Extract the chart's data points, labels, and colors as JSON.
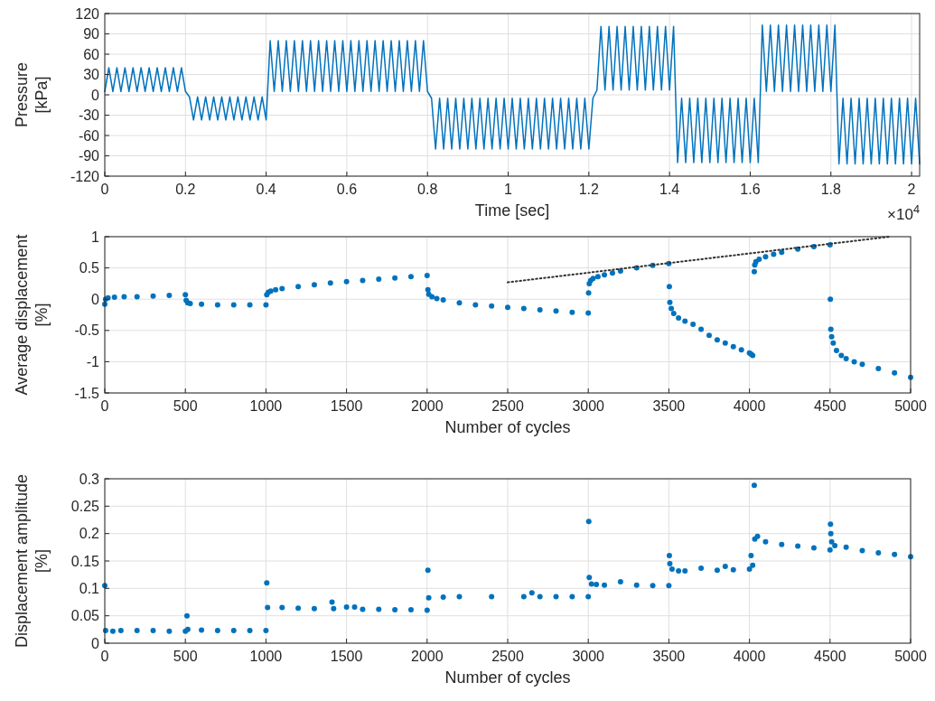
{
  "chart_data": [
    {
      "type": "line",
      "xlabel": "Time [sec]",
      "ylabel": "Pressure\n[kPa]",
      "xlim": [
        0,
        2.02
      ],
      "ylim": [
        -120,
        120
      ],
      "xticks": [
        0,
        0.2,
        0.4,
        0.6,
        0.8,
        1,
        1.2,
        1.4,
        1.6,
        1.8,
        2
      ],
      "yticks": [
        -120,
        -90,
        -60,
        -30,
        0,
        30,
        60,
        90,
        120
      ],
      "grid": true,
      "annotations": [
        "×10$^{4}$"
      ],
      "series": [
        {
          "color": "#0072bd",
          "marker": "none",
          "x": [
            0,
            0.01,
            0.02,
            0.03,
            0.04,
            0.05,
            0.06,
            0.07,
            0.08,
            0.09,
            0.1,
            0.11,
            0.12,
            0.13,
            0.14,
            0.15,
            0.16,
            0.17,
            0.18,
            0.19,
            0.2,
            0.21,
            0.22,
            0.23,
            0.24,
            0.25,
            0.26,
            0.27,
            0.28,
            0.29,
            0.3,
            0.31,
            0.32,
            0.33,
            0.34,
            0.35,
            0.36,
            0.37,
            0.38,
            0.39,
            0.4,
            0.41,
            0.42,
            0.43,
            0.44,
            0.45,
            0.46,
            0.47,
            0.48,
            0.49,
            0.5,
            0.51,
            0.52,
            0.53,
            0.54,
            0.55,
            0.56,
            0.57,
            0.58,
            0.59,
            0.6,
            0.61,
            0.62,
            0.63,
            0.64,
            0.65,
            0.66,
            0.67,
            0.68,
            0.69,
            0.7,
            0.71,
            0.72,
            0.73,
            0.74,
            0.75,
            0.76,
            0.77,
            0.78,
            0.79,
            0.8,
            0.81,
            0.82,
            0.83,
            0.84,
            0.85,
            0.86,
            0.87,
            0.88,
            0.89,
            0.9,
            0.91,
            0.92,
            0.93,
            0.94,
            0.95,
            0.96,
            0.97,
            0.98,
            0.99,
            1,
            1.01,
            1.02,
            1.03,
            1.04,
            1.05,
            1.06,
            1.07,
            1.08,
            1.09,
            1.1,
            1.11,
            1.12,
            1.13,
            1.14,
            1.15,
            1.16,
            1.17,
            1.18,
            1.19,
            1.2,
            1.21,
            1.22,
            1.23,
            1.24,
            1.25,
            1.26,
            1.27,
            1.28,
            1.29,
            1.3,
            1.31,
            1.32,
            1.33,
            1.34,
            1.35,
            1.36,
            1.37,
            1.38,
            1.39,
            1.4,
            1.41,
            1.42,
            1.43,
            1.44,
            1.45,
            1.46,
            1.47,
            1.48,
            1.49,
            1.5,
            1.51,
            1.52,
            1.53,
            1.54,
            1.55,
            1.56,
            1.57,
            1.58,
            1.59,
            1.6,
            1.61,
            1.62,
            1.63,
            1.64,
            1.65,
            1.66,
            1.67,
            1.68,
            1.69,
            1.7,
            1.71,
            1.72,
            1.73,
            1.74,
            1.75,
            1.76,
            1.77,
            1.78,
            1.79,
            1.8,
            1.81,
            1.82,
            1.83,
            1.84,
            1.85,
            1.86,
            1.87,
            1.88,
            1.89,
            1.9,
            1.91,
            1.92,
            1.93,
            1.94,
            1.95,
            1.96,
            1.97,
            1.98,
            1.99,
            2,
            2.01,
            2.02
          ],
          "values": [
            5,
            40,
            5,
            40,
            5,
            40,
            5,
            40,
            5,
            40,
            5,
            40,
            5,
            40,
            5,
            40,
            5,
            40,
            5,
            40,
            5,
            -3,
            -37,
            -3,
            -37,
            -3,
            -37,
            -3,
            -37,
            -3,
            -37,
            -3,
            -37,
            -3,
            -37,
            -3,
            -37,
            -3,
            -37,
            -3,
            -37,
            80,
            5,
            80,
            5,
            80,
            5,
            80,
            5,
            80,
            5,
            80,
            5,
            80,
            5,
            80,
            5,
            80,
            5,
            80,
            5,
            80,
            5,
            80,
            5,
            80,
            5,
            80,
            5,
            80,
            5,
            80,
            5,
            80,
            5,
            80,
            5,
            80,
            5,
            80,
            5,
            -5,
            -80,
            -5,
            -80,
            -5,
            -80,
            -5,
            -80,
            -5,
            -80,
            -5,
            -80,
            -5,
            -80,
            -5,
            -80,
            -5,
            -80,
            -5,
            -80,
            -5,
            -80,
            -5,
            -80,
            -5,
            -80,
            -5,
            -80,
            -5,
            -80,
            -5,
            -80,
            -5,
            -80,
            -5,
            -80,
            -5,
            -80,
            -5,
            -80,
            -5,
            7,
            101,
            7,
            101,
            7,
            101,
            7,
            101,
            7,
            101,
            7,
            101,
            7,
            101,
            7,
            101,
            7,
            101,
            7,
            101,
            -100,
            -5,
            -100,
            -5,
            -100,
            -5,
            -100,
            -5,
            -100,
            -5,
            -100,
            -5,
            -100,
            -5,
            -100,
            -5,
            -100,
            -5,
            -100,
            -5,
            -100,
            103,
            5,
            103,
            5,
            103,
            5,
            103,
            5,
            103,
            5,
            103,
            5,
            103,
            5,
            103,
            5,
            103,
            5,
            103,
            -102,
            -5,
            -102,
            -5,
            -102,
            -5,
            -102,
            -5,
            -102,
            -5,
            -102,
            -5,
            -102,
            -5,
            -102,
            -5,
            -102,
            -5,
            -102,
            -5,
            -102
          ]
        }
      ]
    },
    {
      "type": "scatter",
      "xlabel": "Number of cycles",
      "ylabel": "Average displacement\n[%]",
      "xlim": [
        0,
        5000
      ],
      "ylim": [
        -1.5,
        1
      ],
      "xticks": [
        0,
        500,
        1000,
        1500,
        2000,
        2500,
        3000,
        3500,
        4000,
        4500,
        5000
      ],
      "yticks": [
        -1.5,
        -1,
        -0.5,
        0,
        0.5,
        1
      ],
      "grid": true,
      "marker": "circle",
      "series": [
        {
          "color": "#0072bd",
          "x": [
            0,
            5,
            20,
            60,
            120,
            200,
            300,
            400,
            500,
            505,
            515,
            530,
            600,
            700,
            800,
            900,
            1000,
            1005,
            1015,
            1030,
            1060,
            1100,
            1200,
            1300,
            1400,
            1500,
            1600,
            1700,
            1800,
            1900,
            2000,
            2005,
            2010,
            2030,
            2060,
            2100,
            2200,
            2300,
            2400,
            2500,
            2600,
            2700,
            2800,
            2900,
            3000,
            3002,
            3006,
            3015,
            3030,
            3060,
            3100,
            3150,
            3200,
            3300,
            3400,
            3500,
            3503,
            3506,
            3515,
            3530,
            3560,
            3600,
            3650,
            3700,
            3750,
            3800,
            3850,
            3900,
            3950,
            4000,
            4010,
            4020,
            4030,
            4033,
            4040,
            4060,
            4100,
            4150,
            4200,
            4300,
            4400,
            4500,
            4502,
            4505,
            4510,
            4520,
            4540,
            4570,
            4600,
            4650,
            4700,
            4800,
            4900,
            5000
          ],
          "values": [
            -0.08,
            0.0,
            0.02,
            0.03,
            0.04,
            0.04,
            0.05,
            0.06,
            0.07,
            -0.02,
            -0.06,
            -0.07,
            -0.08,
            -0.09,
            -0.09,
            -0.09,
            -0.09,
            0.07,
            0.11,
            0.13,
            0.15,
            0.17,
            0.2,
            0.23,
            0.26,
            0.28,
            0.3,
            0.32,
            0.34,
            0.36,
            0.38,
            0.15,
            0.08,
            0.04,
            0.01,
            -0.01,
            -0.06,
            -0.09,
            -0.11,
            -0.13,
            -0.15,
            -0.17,
            -0.19,
            -0.21,
            -0.22,
            0.1,
            0.25,
            0.3,
            0.33,
            0.36,
            0.39,
            0.42,
            0.45,
            0.5,
            0.54,
            0.57,
            0.2,
            -0.05,
            -0.15,
            -0.23,
            -0.3,
            -0.35,
            -0.4,
            -0.48,
            -0.58,
            -0.65,
            -0.7,
            -0.76,
            -0.81,
            -0.86,
            -0.88,
            -0.9,
            0.44,
            0.55,
            0.6,
            0.64,
            0.68,
            0.72,
            0.75,
            0.8,
            0.84,
            0.87,
            0.0,
            -0.48,
            -0.6,
            -0.7,
            -0.82,
            -0.9,
            -0.95,
            -1.0,
            -1.04,
            -1.11,
            -1.18,
            -1.25
          ]
        },
        {
          "type": "line",
          "color": "#333333",
          "line_style": "dotted",
          "marker": "none",
          "x": [
            2500,
            4870
          ],
          "values": [
            0.27,
            1.0
          ]
        }
      ]
    },
    {
      "type": "scatter",
      "xlabel": "Number of cycles",
      "ylabel": "Displacement amplitude\n[%]",
      "xlim": [
        0,
        5000
      ],
      "ylim": [
        0,
        0.3
      ],
      "xticks": [
        0,
        500,
        1000,
        1500,
        2000,
        2500,
        3000,
        3500,
        4000,
        4500,
        5000
      ],
      "yticks": [
        0,
        0.05,
        0.1,
        0.15,
        0.2,
        0.25,
        0.3
      ],
      "grid": true,
      "marker": "circle",
      "series": [
        {
          "color": "#0072bd",
          "x": [
            0,
            5,
            50,
            100,
            200,
            300,
            400,
            500,
            510,
            515,
            600,
            700,
            800,
            900,
            1000,
            1005,
            1010,
            1100,
            1200,
            1300,
            1410,
            1420,
            1500,
            1550,
            1600,
            1700,
            1800,
            1900,
            2000,
            2005,
            2010,
            2100,
            2200,
            2400,
            2600,
            2650,
            2700,
            2800,
            2900,
            3000,
            3003,
            3006,
            3020,
            3050,
            3100,
            3200,
            3300,
            3400,
            3500,
            3503,
            3506,
            3520,
            3560,
            3600,
            3700,
            3800,
            3850,
            3900,
            4000,
            4010,
            4020,
            4030,
            4033,
            4050,
            4100,
            4200,
            4300,
            4400,
            4500,
            4503,
            4505,
            4510,
            4530,
            4600,
            4700,
            4800,
            4900,
            5000
          ],
          "values": [
            0.105,
            0.023,
            0.022,
            0.023,
            0.023,
            0.023,
            0.022,
            0.022,
            0.05,
            0.025,
            0.024,
            0.023,
            0.023,
            0.023,
            0.023,
            0.11,
            0.065,
            0.065,
            0.064,
            0.063,
            0.075,
            0.063,
            0.066,
            0.066,
            0.062,
            0.062,
            0.061,
            0.061,
            0.06,
            0.133,
            0.083,
            0.084,
            0.085,
            0.085,
            0.085,
            0.092,
            0.085,
            0.085,
            0.085,
            0.085,
            0.222,
            0.12,
            0.108,
            0.107,
            0.106,
            0.112,
            0.106,
            0.105,
            0.105,
            0.16,
            0.145,
            0.135,
            0.132,
            0.132,
            0.137,
            0.133,
            0.14,
            0.134,
            0.135,
            0.16,
            0.142,
            0.288,
            0.19,
            0.195,
            0.185,
            0.18,
            0.177,
            0.174,
            0.17,
            0.217,
            0.2,
            0.185,
            0.178,
            0.175,
            0.169,
            0.165,
            0.162,
            0.158
          ]
        }
      ]
    }
  ]
}
